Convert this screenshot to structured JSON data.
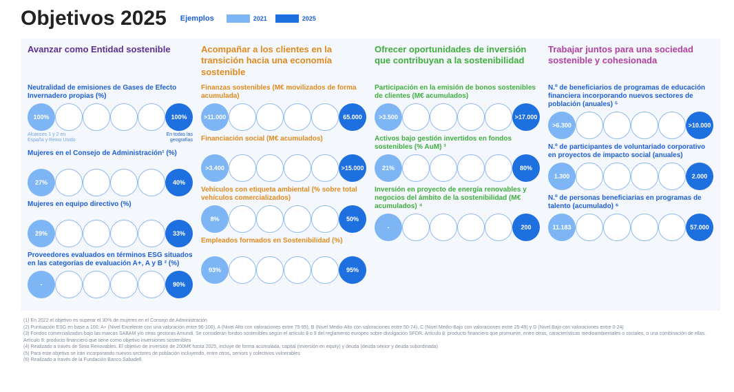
{
  "title": "Objetivos 2025",
  "legend": {
    "label": "Ejemplos",
    "items": [
      {
        "year": "2021",
        "color": "#7eb6f5"
      },
      {
        "year": "2025",
        "color": "#1e6fe0"
      }
    ]
  },
  "colors": {
    "background_panel": "#f4f7fb",
    "circle_border": "#8fb9ef",
    "col1_accent": "#5d2f91",
    "col2_accent": "#e08a1f",
    "col3_accent": "#3fae3f",
    "col4_accent": "#b33fa0",
    "label_blue": "#1e5fd8",
    "label_orange": "#e08a1f",
    "label_green": "#3fae3f",
    "label_purple": "#5d2f91",
    "start_circle": "#7eb6f5",
    "end_circle": "#1e6fe0"
  },
  "columns": [
    {
      "header": "Avanzar como Entidad sostenible",
      "header_color": "#5d2f91",
      "label_color": "#1e5fd8",
      "metrics": [
        {
          "label": "Neutralidad de emisiones de Gases de Efecto Invernadero propias (%)",
          "start": "100%",
          "end": "100%",
          "caption_left": "Alcances 1 y 2 en España y Reino Unido",
          "caption_right": "En todas las geografías"
        },
        {
          "label": "Mujeres en el Consejo de Administración¹ (%)",
          "start": "27%",
          "end": "40%"
        },
        {
          "label": "Mujeres en equipo directivo (%)",
          "start": "29%",
          "end": "33%"
        },
        {
          "label": "Proveedores evaluados en términos ESG situados en las categorías de evaluación A+, A y B ² (%)",
          "start": "-",
          "end": "90%"
        }
      ]
    },
    {
      "header": "Acompañar a los clientes en la transición hacia una economía sostenible",
      "header_color": "#e08a1f",
      "label_color": "#e08a1f",
      "metrics": [
        {
          "label": "Finanzas sostenibles (M€ movilizados de forma acumulada)",
          "start": ">11.000",
          "end": "65.000"
        },
        {
          "label": "Financiación social (M€ acumulados)",
          "start": ">3.400",
          "end": ">15.000"
        },
        {
          "label": "Vehículos con etiqueta ambiental (% sobre total vehículos comercializados)",
          "start": "8%",
          "end": "50%"
        },
        {
          "label": "Empleados formados en Sostenibilidad (%)",
          "start": "93%",
          "end": "95%"
        }
      ]
    },
    {
      "header": "Ofrecer oportunidades de inversión que contribuyan a la sostenibilidad",
      "header_color": "#3fae3f",
      "label_color": "#3fae3f",
      "metrics": [
        {
          "label": "Participación en la emisión de bonos sostenibles de clientes (M€ acumulados)",
          "start": ">3.500",
          "end": ">17.000"
        },
        {
          "label": "Activos bajo gestión invertidos en fondos sostenibles (% AuM) ³",
          "start": "21%",
          "end": "80%"
        },
        {
          "label": "Inversión en proyecto de energía renovables y negocios del ámbito de la sostenibilidad (M€ acumulados) ⁴",
          "start": "-",
          "end": "200"
        }
      ]
    },
    {
      "header": "Trabajar juntos para una sociedad sostenible y cohesionada",
      "header_color": "#b33fa0",
      "label_color": "#1e5fd8",
      "metrics": [
        {
          "label": "N.º de beneficiarios de programas de educación financiera incorporando nuevos sectores de población (anuales) ⁵",
          "start": ">6.300",
          "end": ">10.000"
        },
        {
          "label": "N.º de participantes de voluntariado corporativo en proyectos de impacto social (anuales)",
          "start": "1.300",
          "end": "2.000"
        },
        {
          "label": "N.º de personas beneficiarias en programas de talento (acumulado) ⁶",
          "start": "11.183",
          "end": "57.000"
        }
      ]
    }
  ],
  "footnotes": [
    "(1) En 2022 el objetivo es superar el 30% de mujeres en el Consejo de Administración",
    "(2) Puntuación ESG en base a 100: A+ (Nivel Excelente con una valoración entre 96-100), A (Nivel Alto con valoraciones entre 75-95), B (Nivel Medio-Alto con valoraciones entre 50-74), C (Nivel Medio-Bajo con valoraciones entre 25-49) y D (Nivel Bajo con valoraciones entre 0-24)",
    "(3) Fondos comercializados bajo las marcas SABAM y/o otras gestoras Amundi. Se consideran fondos sostenibles según  el artículo 8 o 9 del reglamento europeo sobre divulgación SFDR. Artículo 8: producto financiero que promueve, entre otras, características medioambientales o sociales, o una combinación de ellas. Artículo 9: producto financiero que tiene como objetivo inversiones sostenibles",
    "(4) Realizado a través de Sinia Renovables. El objetivo de inversión de 200M€ hasta 2025, incluye de forma acumulada, capital (inversión en equity) y deuda (deuda sénior y deuda subordinada)",
    "(5) Para este objetivo se irán incorporando nuevos sectores de población incluyendo, entre otros, seniors y colectivos vulnerables",
    "(6) Realizado a través de la Fundación Banco Sabadell"
  ]
}
